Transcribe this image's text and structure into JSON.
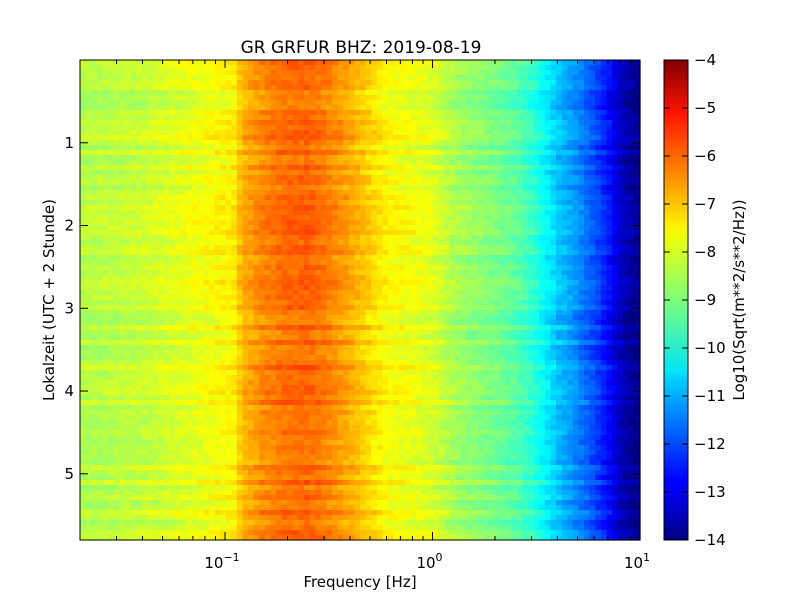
{
  "chart_data": {
    "type": "heatmap",
    "title": "GR GRFUR BHZ: 2019-08-19",
    "xlabel": "Frequency [Hz]",
    "ylabel": "Lokalzeit (UTC + 2 Stunde)",
    "x_scale": "log",
    "xlim": [
      0.02,
      10
    ],
    "ylim": [
      0,
      5.8
    ],
    "y_inverted": true,
    "x_ticks": [
      {
        "base": "10",
        "exp": "−1",
        "value": 0.1
      },
      {
        "base": "10",
        "exp": "0",
        "value": 1
      },
      {
        "base": "10",
        "exp": "1",
        "value": 10
      }
    ],
    "y_ticks": [
      {
        "label": "1",
        "value": 1
      },
      {
        "label": "2",
        "value": 2
      },
      {
        "label": "3",
        "value": 3
      },
      {
        "label": "4",
        "value": 4
      },
      {
        "label": "5",
        "value": 5
      }
    ],
    "colorbar": {
      "label": "Log10(Sqrt(m**2/s**2/Hz))",
      "range": [
        -14,
        -4
      ],
      "colormap": "jet",
      "ticks": [
        {
          "label": "−4",
          "value": -4
        },
        {
          "label": "−5",
          "value": -5
        },
        {
          "label": "−6",
          "value": -6
        },
        {
          "label": "−7",
          "value": -7
        },
        {
          "label": "−8",
          "value": -8
        },
        {
          "label": "−9",
          "value": -9
        },
        {
          "label": "−10",
          "value": -10
        },
        {
          "label": "−11",
          "value": -11
        },
        {
          "label": "−12",
          "value": -12
        },
        {
          "label": "−13",
          "value": -13
        },
        {
          "label": "−14",
          "value": -14
        }
      ]
    },
    "spectrum_profile": {
      "frequency_hz": [
        0.02,
        0.04,
        0.06,
        0.09,
        0.11,
        0.12,
        0.15,
        0.2,
        0.25,
        0.3,
        0.4,
        0.5,
        0.6,
        0.8,
        1.0,
        1.3,
        1.6,
        2.0,
        2.5,
        3.0,
        3.5,
        4.0,
        5.0,
        6.0,
        7.0,
        8.0,
        9.0,
        10.0
      ],
      "log_amplitude": [
        -8.5,
        -8.3,
        -8.05,
        -7.8,
        -7.65,
        -7.05,
        -6.6,
        -6.3,
        -6.25,
        -6.45,
        -6.9,
        -7.35,
        -7.75,
        -7.9,
        -8.1,
        -8.6,
        -8.85,
        -9.05,
        -9.35,
        -9.75,
        -10.3,
        -10.8,
        -11.4,
        -12.0,
        -12.6,
        -13.3,
        -13.7,
        -13.9
      ]
    },
    "grid": false,
    "legend": "none"
  }
}
